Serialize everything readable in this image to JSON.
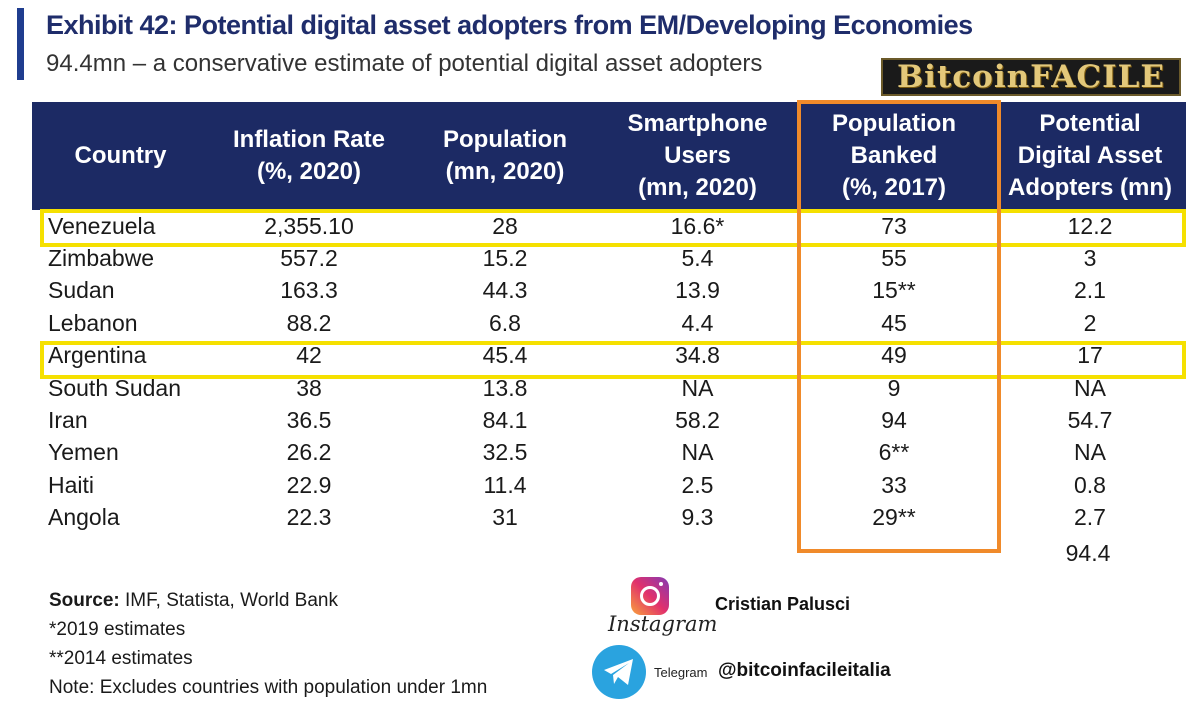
{
  "header": {
    "title": "Exhibit 42: Potential digital asset adopters from EM/Developing Economies",
    "subtitle": "94.4mn – a conservative estimate of potential digital asset adopters",
    "logo_text": "BitcoinFACILE"
  },
  "chart_data": {
    "type": "table",
    "columns": [
      "Country",
      "Inflation Rate (%, 2020)",
      "Population (mn, 2020)",
      "Smartphone Users (mn, 2020)",
      "Population Banked (%, 2017)",
      "Potential Digital Asset Adopters (mn)"
    ],
    "rows": [
      [
        "Venezuela",
        "2,355.10",
        "28",
        "16.6*",
        "73",
        "12.2"
      ],
      [
        "Zimbabwe",
        "557.2",
        "15.2",
        "5.4",
        "55",
        "3"
      ],
      [
        "Sudan",
        "163.3",
        "44.3",
        "13.9",
        "15**",
        "2.1"
      ],
      [
        "Lebanon",
        "88.2",
        "6.8",
        "4.4",
        "45",
        "2"
      ],
      [
        "Argentina",
        "42",
        "45.4",
        "34.8",
        "49",
        "17"
      ],
      [
        "South Sudan",
        "38",
        "13.8",
        "NA",
        "9",
        "NA"
      ],
      [
        "Iran",
        "36.5",
        "84.1",
        "58.2",
        "94",
        "54.7"
      ],
      [
        "Yemen",
        "26.2",
        "32.5",
        "NA",
        "6**",
        "NA"
      ],
      [
        "Haiti",
        "22.9",
        "11.4",
        "2.5",
        "33",
        "0.8"
      ],
      [
        "Angola",
        "22.3",
        "31",
        "9.3",
        "29**",
        "2.7"
      ]
    ],
    "total": "94.4",
    "highlighted_rows": [
      "Venezuela",
      "Argentina"
    ],
    "highlighted_column": "Population Banked (%, 2017)"
  },
  "table_headers": {
    "country": "Country",
    "inflation": [
      "Inflation Rate",
      "(%, 2020)"
    ],
    "population": [
      "Population",
      "(mn, 2020)"
    ],
    "smartphone": [
      "Smartphone",
      "Users",
      "(mn, 2020)"
    ],
    "banked": [
      "Population",
      "Banked",
      "(%, 2017)"
    ],
    "adopters": [
      "Potential",
      "Digital Asset",
      "Adopters (mn)"
    ]
  },
  "footnotes": {
    "source_label": "Source:",
    "source_text": " IMF, Statista, World Bank",
    "note1": "*2019 estimates",
    "note2": "**2014 estimates",
    "note3": "Note: Excludes countries with population under 1mn"
  },
  "social": {
    "instagram_label": "Instagram",
    "instagram_name": "Cristian Palusci",
    "telegram_label": "Telegram",
    "telegram_handle": "@bitcoinfacileitalia"
  },
  "colors": {
    "header_bg": "#1c2a64",
    "highlight_row": "#f5e000",
    "highlight_col": "#f08a2a",
    "title": "#1f2d6b"
  }
}
